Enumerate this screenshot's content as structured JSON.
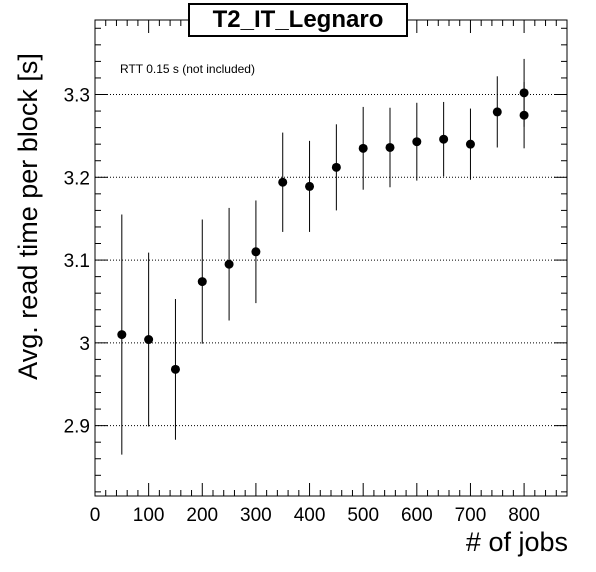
{
  "chart_data": {
    "type": "scatter",
    "title": "T2_IT_Legnaro",
    "xlabel": "# of jobs",
    "ylabel": "Avg. read time per block [s]",
    "annotation": "RTT 0.15 s (not included)",
    "xlim": [
      0,
      880
    ],
    "ylim": [
      2.815,
      3.39
    ],
    "xticks": [
      0,
      100,
      200,
      300,
      400,
      500,
      600,
      700,
      800
    ],
    "xtick_labels": [
      "0",
      "100",
      "200",
      "300",
      "400",
      "500",
      "600",
      "700",
      "800"
    ],
    "yticks": [
      2.9,
      3.0,
      3.1,
      3.2,
      3.3
    ],
    "ytick_labels": [
      "2.9",
      "3",
      "3.1",
      "3.2",
      "3.3"
    ],
    "grid": "horizontal dotted at major y ticks",
    "marker_color": "#000000",
    "series": [
      {
        "points": [
          {
            "x": 50,
            "y": 3.01,
            "err": 0.145
          },
          {
            "x": 100,
            "y": 3.004,
            "err": 0.105
          },
          {
            "x": 150,
            "y": 2.968,
            "err": 0.085
          },
          {
            "x": 200,
            "y": 3.074,
            "err": 0.075
          },
          {
            "x": 250,
            "y": 3.095,
            "err": 0.068
          },
          {
            "x": 300,
            "y": 3.11,
            "err": 0.062
          },
          {
            "x": 350,
            "y": 3.194,
            "err": 0.06
          },
          {
            "x": 400,
            "y": 3.189,
            "err": 0.055
          },
          {
            "x": 450,
            "y": 3.212,
            "err": 0.052
          },
          {
            "x": 500,
            "y": 3.235,
            "err": 0.05
          },
          {
            "x": 550,
            "y": 3.236,
            "err": 0.048
          },
          {
            "x": 600,
            "y": 3.243,
            "err": 0.047
          },
          {
            "x": 650,
            "y": 3.246,
            "err": 0.045
          },
          {
            "x": 700,
            "y": 3.24,
            "err": 0.043
          },
          {
            "x": 750,
            "y": 3.279,
            "err": 0.043
          },
          {
            "x": 800,
            "y": 3.302,
            "err": 0.041
          },
          {
            "x": 800,
            "y": 3.275,
            "err": 0.04
          }
        ]
      }
    ]
  }
}
